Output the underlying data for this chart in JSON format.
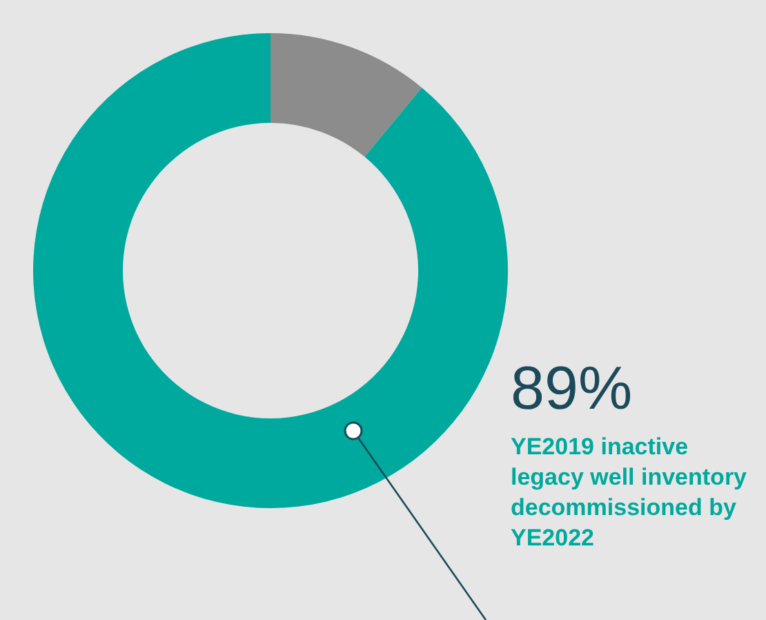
{
  "chart_data": {
    "type": "donut",
    "categories": [
      null,
      null
    ],
    "values": [
      11,
      89
    ],
    "colors": [
      "#8c8c8c",
      "#00a99d"
    ],
    "value_labels": [
      null,
      "89%"
    ],
    "annotations": [
      "YE2019 inactive legacy well inventory decommissioned by YE2022"
    ]
  }
}
